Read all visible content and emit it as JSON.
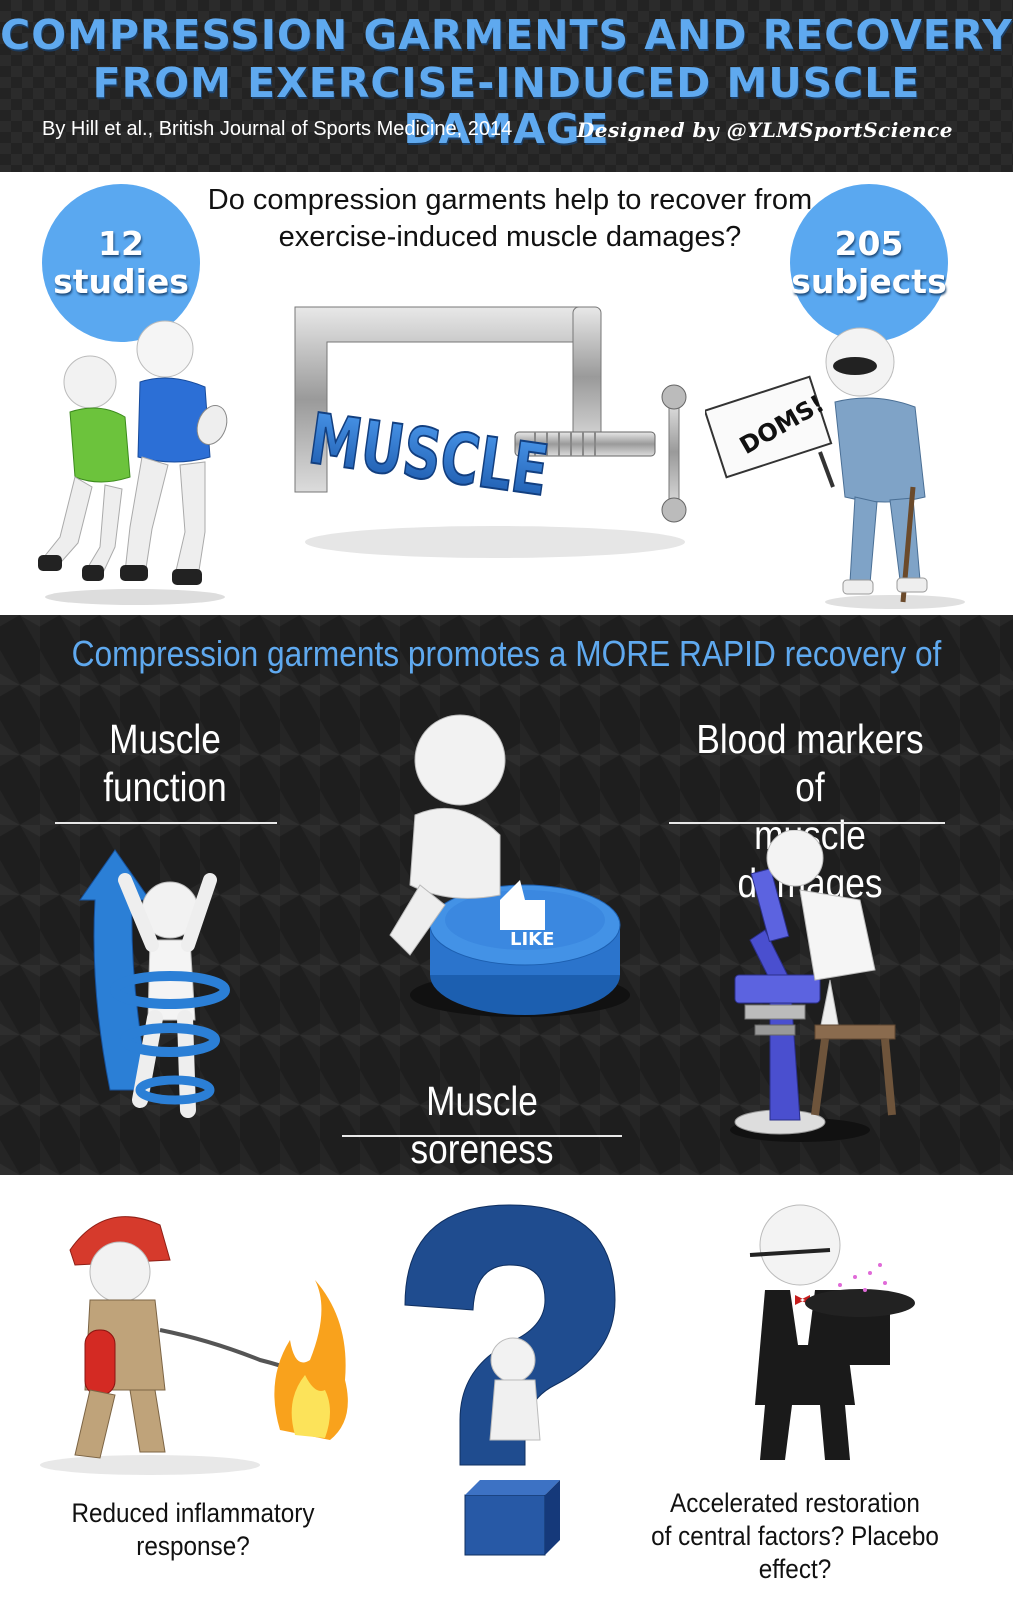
{
  "header": {
    "title_line1": "COMPRESSION GARMENTS AND RECOVERY",
    "title_line2": "FROM EXERCISE-INDUCED MUSCLE DAMAGE",
    "byline": "By Hill et al., British Journal of Sports Medicine, 2014",
    "designer": "Designed by @YLMSportScience"
  },
  "intro": {
    "question_line1": "Do compression garments help to recover from",
    "question_line2": "exercise-induced muscle damages?",
    "studies_number": "12",
    "studies_label": "studies",
    "subjects_number": "205",
    "subjects_label": "subjects",
    "clamp_word": "MUSCLE",
    "sign_text": "DOMS!"
  },
  "findings": {
    "heading": "Compression garments promotes a MORE RAPID recovery of",
    "items": [
      {
        "line1": "Muscle",
        "line2": "function"
      },
      {
        "line1": "Muscle soreness",
        "line2": ""
      },
      {
        "line1": "Blood markers of",
        "line2": "muscle damages"
      }
    ],
    "button_text": "LIKE"
  },
  "mechanisms": {
    "left": "Reduced inflammatory response?",
    "right_line1": "Accelerated restoration",
    "right_line2": "of central factors? Placebo effect?"
  },
  "colors": {
    "accent_blue": "#5aa8f0",
    "dark_bg": "#1e1e1e",
    "clamp_blue": "#2b73c8"
  }
}
